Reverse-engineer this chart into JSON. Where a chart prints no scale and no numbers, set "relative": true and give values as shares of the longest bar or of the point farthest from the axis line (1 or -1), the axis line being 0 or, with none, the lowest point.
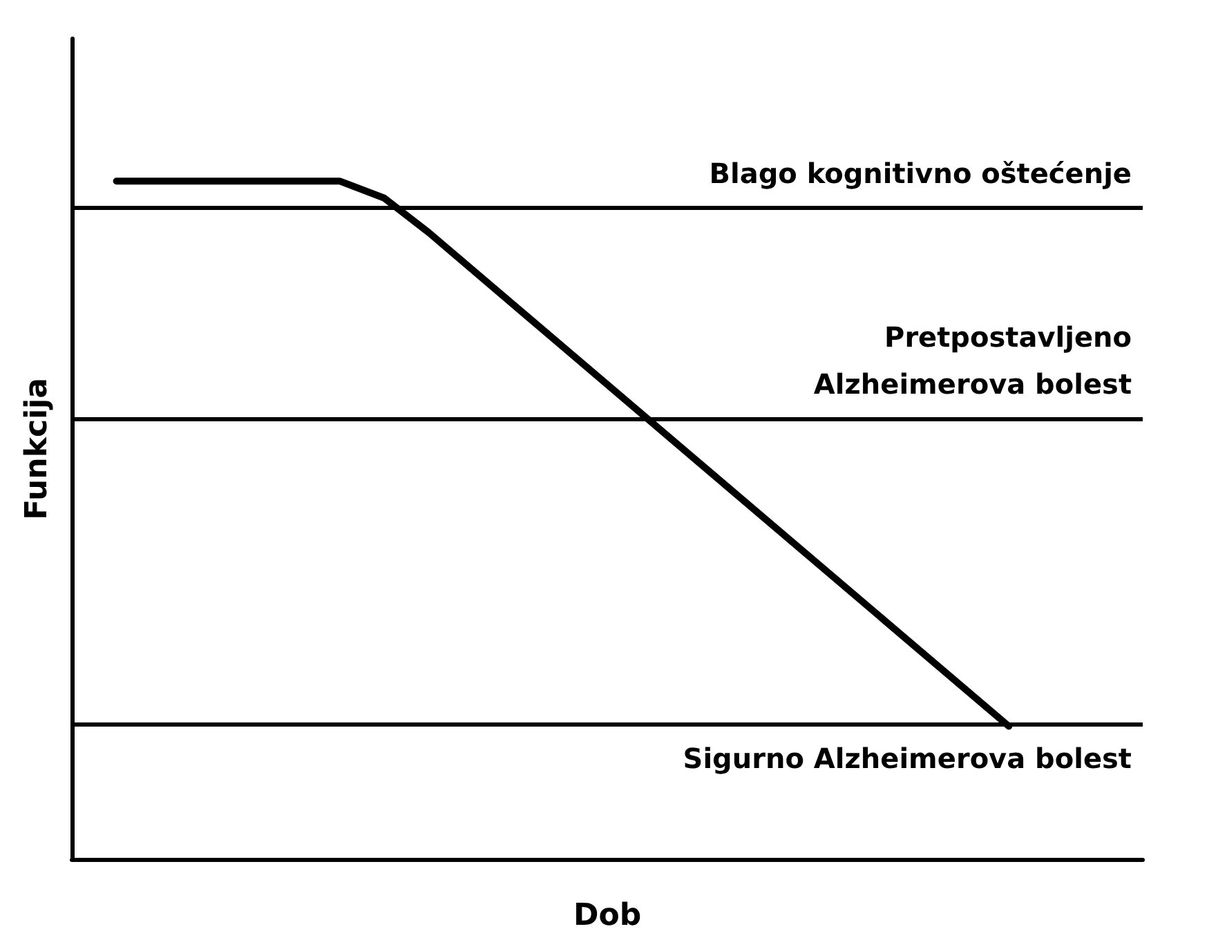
{
  "chart_data": {
    "type": "line",
    "relative": true,
    "xlabel": "Dob",
    "ylabel": "Funkcija",
    "categories": [
      null,
      null,
      null,
      null,
      null,
      null,
      null,
      null,
      null,
      null,
      null,
      null,
      null,
      null,
      null,
      null,
      null,
      null,
      null,
      null,
      null,
      null,
      null,
      null,
      null
    ],
    "series": [
      {
        "color": "#000000",
        "values": [
          null,
          1,
          null,
          null,
          null,
          null,
          1,
          0.975,
          0.924,
          null,
          null,
          null,
          null,
          null,
          null,
          null,
          null,
          null,
          null,
          null,
          null,
          0.196,
          null,
          null,
          null
        ]
      }
    ],
    "ref_lines": [
      {
        "axis": "y",
        "value": 0.96,
        "label": "Blago kognitivno oštećenje",
        "color": "#000000",
        "line_style": "solid"
      },
      {
        "axis": "y",
        "value": 0.648,
        "label": "Pretpostavljeno\nAlzheimerova bolest",
        "color": "#000000",
        "line_style": "solid"
      },
      {
        "axis": "y",
        "value": 0.196,
        "label": "Sigurno Alzheimerova bolest",
        "color": "#000000",
        "line_style": "solid"
      }
    ],
    "grid": false,
    "marker": "none",
    "line_style": "solid"
  }
}
